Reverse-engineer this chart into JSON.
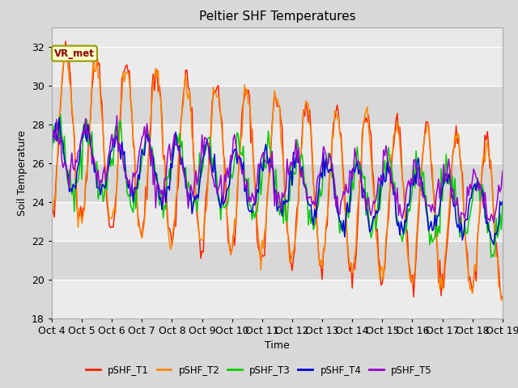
{
  "title": "Peltier SHF Temperatures",
  "xlabel": "Time",
  "ylabel": "Soil Temperature",
  "ylim": [
    18,
    33
  ],
  "xlim": [
    0,
    360
  ],
  "annotation_text": "VR_met",
  "annotation_bg": "#ffffcc",
  "annotation_border": "#999900",
  "annotation_text_color": "#880000",
  "background_color": "#d8d8d8",
  "plot_bg": "#e8e8e8",
  "band_color_dark": "#d8d8d8",
  "band_color_light": "#ebebeb",
  "grid_color": "#ffffff",
  "tick_labels": [
    "Oct 4",
    "Oct 5",
    "Oct 6",
    "Oct 7",
    "Oct 8",
    "Oct 9",
    "Oct 10",
    "Oct 11",
    "Oct 12",
    "Oct 13",
    "Oct 14",
    "Oct 15",
    "Oct 16",
    "Oct 17",
    "Oct 18",
    "Oct 19"
  ],
  "series_colors": [
    "#ff2200",
    "#ff8800",
    "#00cc00",
    "#0000dd",
    "#9900cc"
  ],
  "series_names": [
    "pSHF_T1",
    "pSHF_T2",
    "pSHF_T3",
    "pSHF_T4",
    "pSHF_T5"
  ],
  "line_width": 1.1,
  "yticks": [
    18,
    20,
    22,
    24,
    26,
    28,
    30,
    32
  ],
  "band_edges": [
    18,
    20,
    22,
    24,
    26,
    28,
    30,
    32
  ]
}
